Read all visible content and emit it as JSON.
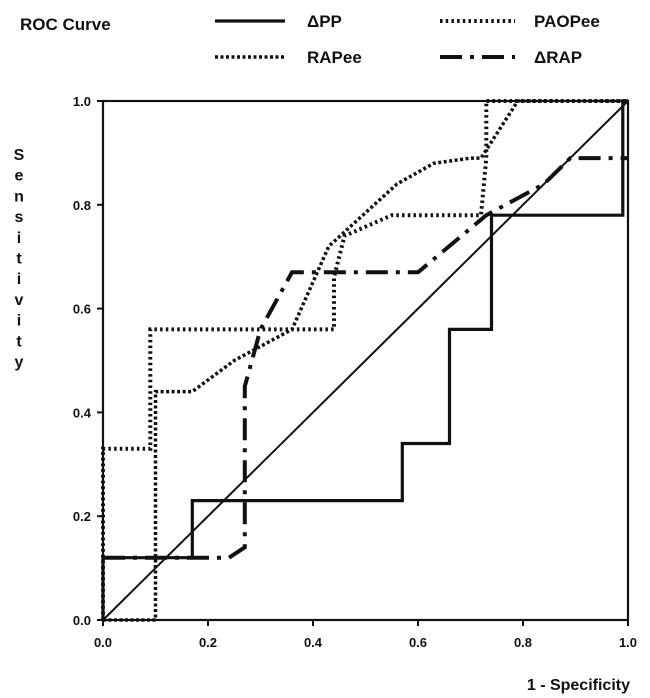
{
  "chart_data": {
    "type": "line",
    "title": "ROC Curve",
    "xlabel": "1 - Specificity",
    "ylabel": "Sensitivity",
    "xlim": [
      0,
      1
    ],
    "ylim": [
      0,
      1
    ],
    "x_ticks": [
      "0.0",
      "0.2",
      "0.4",
      "0.6",
      "0.8",
      "1.0"
    ],
    "y_ticks": [
      "0.0",
      "0.2",
      "0.4",
      "0.6",
      "0.8",
      "1.0"
    ],
    "grid": false,
    "legend_position": "top",
    "reference_line": {
      "x": [
        0,
        1
      ],
      "y": [
        0,
        1
      ]
    },
    "series": [
      {
        "name": "ΔPP",
        "style": "solid",
        "x": [
          0,
          0,
          0.17,
          0.17,
          0.57,
          0.57,
          0.66,
          0.66,
          0.74,
          0.74,
          0.99,
          0.99,
          1.0
        ],
        "y": [
          0,
          0.12,
          0.12,
          0.23,
          0.23,
          0.34,
          0.34,
          0.56,
          0.56,
          0.78,
          0.78,
          1.0,
          1.0
        ]
      },
      {
        "name": "PAOPee",
        "style": "dotted",
        "x": [
          0,
          0,
          0.09,
          0.09,
          0.44,
          0.44,
          0.46,
          0.55,
          0.72,
          0.73,
          0.73,
          1.0
        ],
        "y": [
          0,
          0.33,
          0.33,
          0.56,
          0.56,
          0.66,
          0.74,
          0.78,
          0.78,
          0.89,
          1.0,
          1.0
        ]
      },
      {
        "name": "RAPee",
        "style": "dense-dotted",
        "x": [
          0.0,
          0.1,
          0.1,
          0.12,
          0.17,
          0.25,
          0.36,
          0.43,
          0.56,
          0.63,
          0.7,
          0.72,
          0.79,
          1.0
        ],
        "y": [
          0.0,
          0.0,
          0.44,
          0.44,
          0.44,
          0.5,
          0.56,
          0.72,
          0.84,
          0.88,
          0.89,
          0.89,
          1.0,
          1.0
        ]
      },
      {
        "name": "ΔRAP",
        "style": "dash-dot",
        "x": [
          0.0,
          0.24,
          0.27,
          0.27,
          0.3,
          0.36,
          0.6,
          0.73,
          0.84,
          0.89,
          1.0
        ],
        "y": [
          0.12,
          0.12,
          0.14,
          0.45,
          0.56,
          0.67,
          0.67,
          0.78,
          0.84,
          0.89,
          0.89
        ]
      }
    ]
  }
}
